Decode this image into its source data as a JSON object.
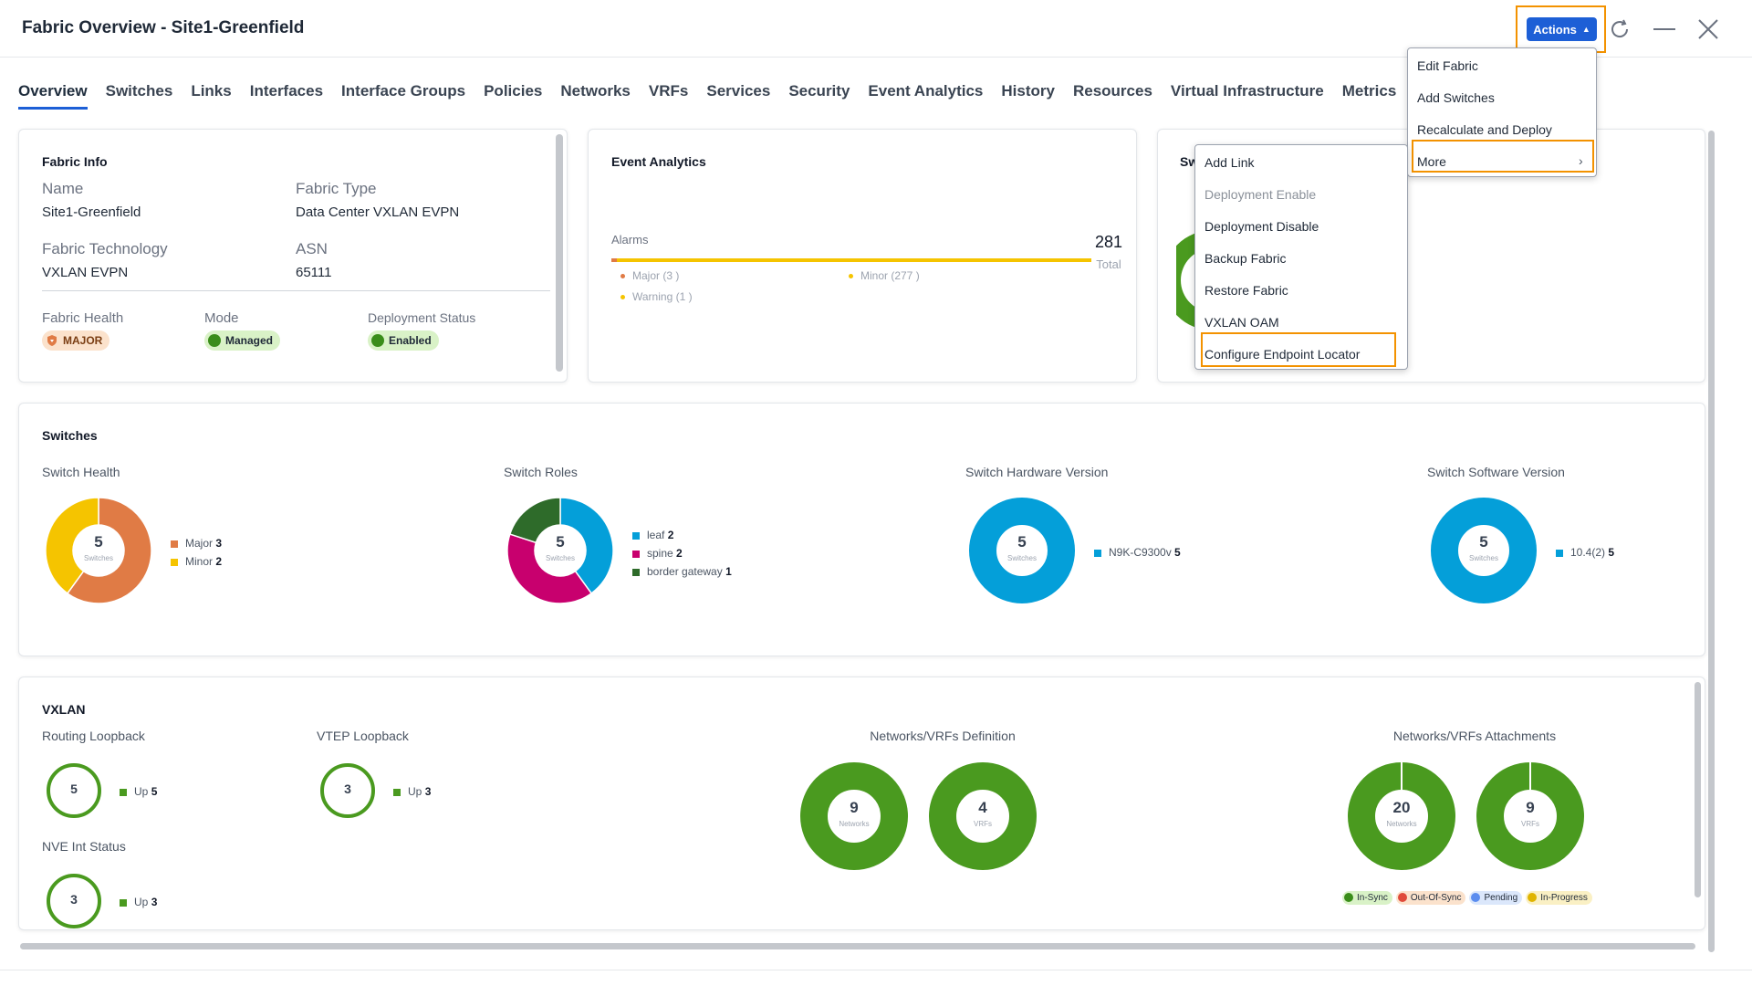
{
  "header": {
    "title": "Fabric Overview - Site1-Greenfield",
    "actions_label": "Actions",
    "icons": [
      "refresh-icon",
      "minimize-icon",
      "close-icon"
    ]
  },
  "tabs": [
    "Overview",
    "Switches",
    "Links",
    "Interfaces",
    "Interface Groups",
    "Policies",
    "Networks",
    "VRFs",
    "Services",
    "Security",
    "Event Analytics",
    "History",
    "Resources",
    "Virtual Infrastructure",
    "Metrics"
  ],
  "fabric_info": {
    "title": "Fabric Info",
    "name_label": "Name",
    "name_value": "Site1-Greenfield",
    "type_label": "Fabric Type",
    "type_value": "Data Center VXLAN EVPN",
    "tech_label": "Fabric Technology",
    "tech_value": "VXLAN EVPN",
    "asn_label": "ASN",
    "asn_value": "65111",
    "health_label": "Fabric Health",
    "health_value": "MAJOR",
    "mode_label": "Mode",
    "mode_value": "Managed",
    "deploy_label": "Deployment Status",
    "deploy_value": "Enabled"
  },
  "event_analytics": {
    "title": "Event Analytics",
    "alarms_label": "Alarms",
    "total_value": "281",
    "total_label": "Total",
    "major": "Major (3 )",
    "minor": "Minor (277 )",
    "warning": "Warning (1 )"
  },
  "third_card": {
    "title_partial": "Sw"
  },
  "actions_menu": {
    "items": [
      "Edit Fabric",
      "Add Switches",
      "Recalculate and Deploy",
      "More"
    ]
  },
  "more_menu": {
    "items": [
      "Add Link",
      "Deployment Enable",
      "Deployment Disable",
      "Backup Fabric",
      "Restore Fabric",
      "VXLAN OAM",
      "Configure Endpoint Locator"
    ]
  },
  "switches": {
    "title": "Switches",
    "health": {
      "label": "Switch Health",
      "total": "5",
      "unit": "Switches",
      "legend": [
        {
          "name": "Major",
          "value": "3"
        },
        {
          "name": "Minor",
          "value": "2"
        }
      ]
    },
    "roles": {
      "label": "Switch Roles",
      "total": "5",
      "unit": "Switches",
      "legend": [
        {
          "name": "leaf",
          "value": "2"
        },
        {
          "name": "spine",
          "value": "2"
        },
        {
          "name": "border gateway",
          "value": "1"
        }
      ]
    },
    "hardware": {
      "label": "Switch Hardware Version",
      "total": "5",
      "unit": "Switches",
      "legend": [
        {
          "name": "N9K-C9300v",
          "value": "5"
        }
      ]
    },
    "software": {
      "label": "Switch Software Version",
      "total": "5",
      "unit": "Switches",
      "legend": [
        {
          "name": "10.4(2)",
          "value": "5"
        }
      ]
    }
  },
  "vxlan": {
    "title": "VXLAN",
    "routing": {
      "label": "Routing Loopback",
      "value": "5",
      "legend_name": "Up",
      "legend_value": "5"
    },
    "vtep": {
      "label": "VTEP Loopback",
      "value": "3",
      "legend_name": "Up",
      "legend_value": "3"
    },
    "nve": {
      "label": "NVE Int Status",
      "value": "3",
      "legend_name": "Up",
      "legend_value": "3"
    },
    "definition": {
      "label": "Networks/VRFs Definition",
      "networks": "9",
      "networks_unit": "Networks",
      "vrfs": "4",
      "vrfs_unit": "VRFs"
    },
    "attachments": {
      "label": "Networks/VRFs Attachments",
      "networks": "20",
      "networks_unit": "Networks",
      "vrfs": "9",
      "vrfs_unit": "VRFs"
    },
    "sync_legend": [
      "In-Sync",
      "Out-Of-Sync",
      "Pending",
      "In-Progress"
    ]
  },
  "colors": {
    "accent": "#1d5fd6",
    "highlight": "#f39200",
    "major": "#e07b45",
    "minor": "#f5c400",
    "leaf": "#049fd9",
    "spine": "#c8006e",
    "border_gateway": "#2e6b2a",
    "green": "#4a9a1f"
  }
}
